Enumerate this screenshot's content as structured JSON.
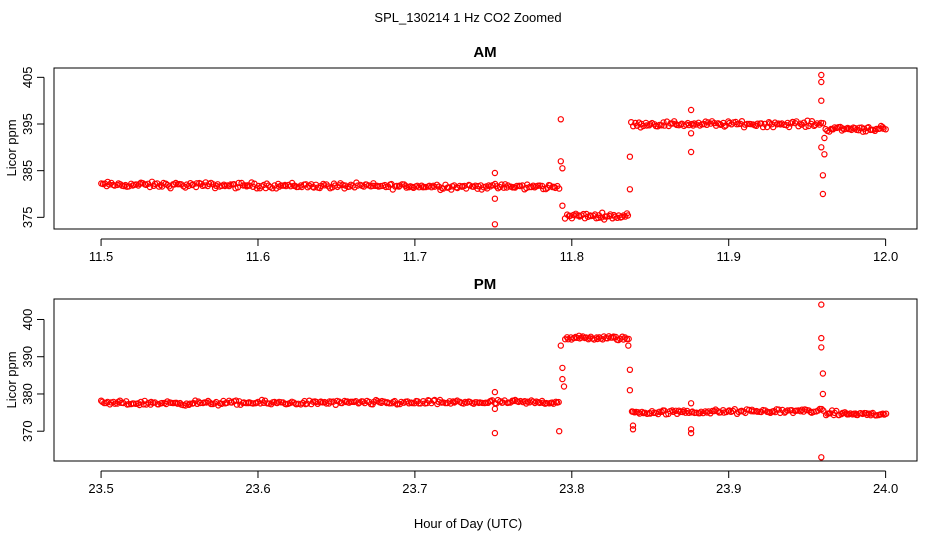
{
  "figure": {
    "title": "SPL_130214  1 Hz CO2 Zoomed",
    "xlabel": "Hour of Day (UTC)"
  },
  "chart_data": [
    {
      "type": "scatter",
      "title": "AM",
      "ylabel": "Licor ppm",
      "xlim": [
        11.47,
        12.02
      ],
      "ylim": [
        372.5,
        407
      ],
      "xticks": [
        11.5,
        11.6,
        11.7,
        11.8,
        11.9,
        12.0
      ],
      "xtick_labels": [
        "11.5",
        "11.6",
        "11.7",
        "11.8",
        "11.9",
        "12.0"
      ],
      "yticks": [
        375,
        385,
        395,
        405
      ],
      "ytick_labels": [
        "375",
        "385",
        "395",
        "405"
      ],
      "grid": false,
      "marker_color": "#ff0000",
      "segments": [
        {
          "x_start": 11.5,
          "x_end": 11.792,
          "y_start": 382.0,
          "y_end": 381.5
        },
        {
          "x_start": 11.796,
          "x_end": 11.836,
          "y_start": 375.3,
          "y_end": 375.3
        },
        {
          "x_start": 11.838,
          "x_end": 11.96,
          "y_start": 395.0,
          "y_end": 395.0
        },
        {
          "x_start": 11.962,
          "x_end": 12.0,
          "y_start": 394.0,
          "y_end": 394.0
        }
      ],
      "outliers": [
        {
          "x": 11.751,
          "y": 384.5
        },
        {
          "x": 11.751,
          "y": 379.0
        },
        {
          "x": 11.751,
          "y": 373.5
        },
        {
          "x": 11.793,
          "y": 396.0
        },
        {
          "x": 11.793,
          "y": 387.0
        },
        {
          "x": 11.794,
          "y": 385.5
        },
        {
          "x": 11.794,
          "y": 377.5
        },
        {
          "x": 11.837,
          "y": 388.0
        },
        {
          "x": 11.837,
          "y": 381.0
        },
        {
          "x": 11.876,
          "y": 398.0
        },
        {
          "x": 11.876,
          "y": 393.0
        },
        {
          "x": 11.876,
          "y": 389.0
        },
        {
          "x": 11.959,
          "y": 405.5
        },
        {
          "x": 11.959,
          "y": 404.0
        },
        {
          "x": 11.959,
          "y": 400.0
        },
        {
          "x": 11.959,
          "y": 390.0
        },
        {
          "x": 11.96,
          "y": 384.0
        },
        {
          "x": 11.96,
          "y": 380.0
        },
        {
          "x": 11.961,
          "y": 392.0
        },
        {
          "x": 11.961,
          "y": 388.5
        }
      ]
    },
    {
      "type": "scatter",
      "title": "PM",
      "ylabel": "Licor ppm",
      "xlim": [
        23.47,
        24.02
      ],
      "ylim": [
        362,
        405.5
      ],
      "xticks": [
        23.5,
        23.6,
        23.7,
        23.8,
        23.9,
        24.0
      ],
      "xtick_labels": [
        "23.5",
        "23.6",
        "23.7",
        "23.8",
        "23.9",
        "24.0"
      ],
      "yticks": [
        370,
        380,
        390,
        400
      ],
      "ytick_labels": [
        "370",
        "380",
        "390",
        "400"
      ],
      "grid": false,
      "marker_color": "#ff0000",
      "segments": [
        {
          "x_start": 23.5,
          "x_end": 23.792,
          "y_start": 377.5,
          "y_end": 377.8
        },
        {
          "x_start": 23.796,
          "x_end": 23.836,
          "y_start": 395.0,
          "y_end": 395.0
        },
        {
          "x_start": 23.838,
          "x_end": 23.96,
          "y_start": 375.0,
          "y_end": 375.5
        },
        {
          "x_start": 23.962,
          "x_end": 24.0,
          "y_start": 374.8,
          "y_end": 374.5
        }
      ],
      "outliers": [
        {
          "x": 23.751,
          "y": 380.5
        },
        {
          "x": 23.751,
          "y": 376.0
        },
        {
          "x": 23.751,
          "y": 369.5
        },
        {
          "x": 23.792,
          "y": 370.0
        },
        {
          "x": 23.793,
          "y": 393.0
        },
        {
          "x": 23.794,
          "y": 387.0
        },
        {
          "x": 23.794,
          "y": 384.0
        },
        {
          "x": 23.795,
          "y": 382.0
        },
        {
          "x": 23.836,
          "y": 393.0
        },
        {
          "x": 23.837,
          "y": 386.5
        },
        {
          "x": 23.837,
          "y": 381.0
        },
        {
          "x": 23.839,
          "y": 371.5
        },
        {
          "x": 23.839,
          "y": 370.5
        },
        {
          "x": 23.876,
          "y": 377.5
        },
        {
          "x": 23.876,
          "y": 370.5
        },
        {
          "x": 23.876,
          "y": 369.5
        },
        {
          "x": 23.959,
          "y": 404.0
        },
        {
          "x": 23.959,
          "y": 395.0
        },
        {
          "x": 23.959,
          "y": 392.5
        },
        {
          "x": 23.96,
          "y": 385.5
        },
        {
          "x": 23.96,
          "y": 380.0
        },
        {
          "x": 23.959,
          "y": 363.0
        }
      ]
    }
  ]
}
